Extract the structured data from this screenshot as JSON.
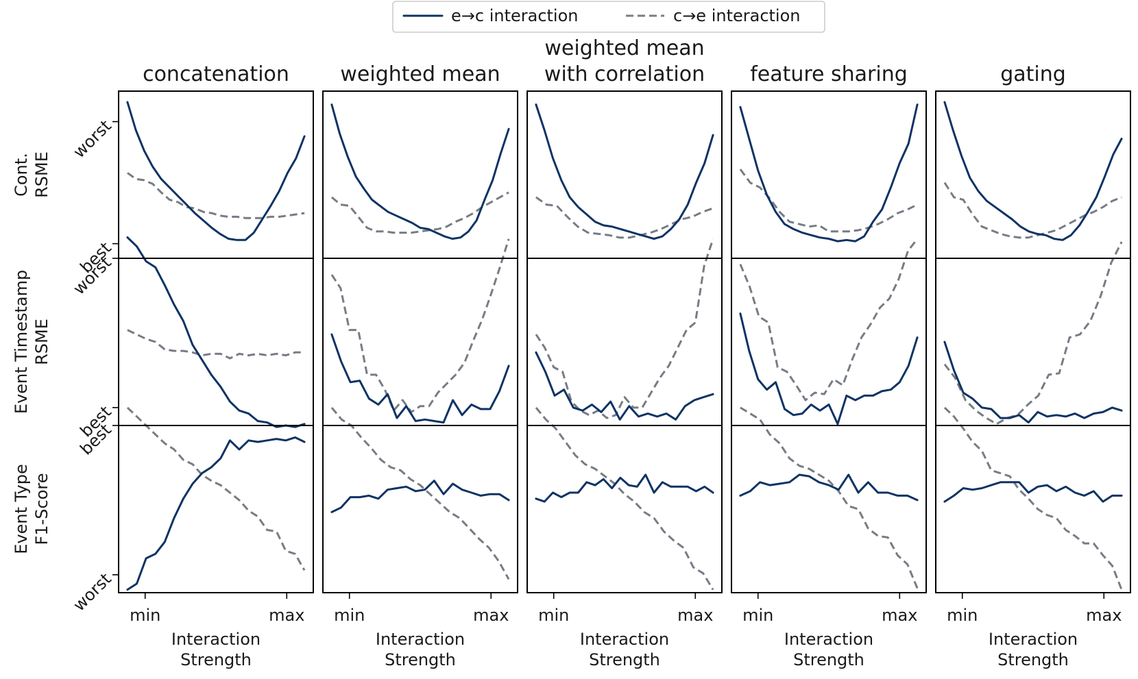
{
  "chart_data": {
    "type": "line",
    "legend": {
      "placement": "top-center",
      "entries": [
        {
          "label": "e→c interaction",
          "style": "solid",
          "color": "#0e3364"
        },
        {
          "label": "c→e interaction",
          "style": "dashed",
          "color": "#777c85"
        }
      ]
    },
    "colors": {
      "e2c": "#0e3364",
      "c2e": "#777c85"
    },
    "columns": [
      "concatenation",
      "weighted mean",
      "weighted mean\nwith correlation",
      "feature sharing",
      "gating"
    ],
    "rows": [
      {
        "label": "Cont.\nRSME",
        "tick_labels": [
          "worst",
          "best"
        ],
        "ylim": [
          -0.12,
          1.25
        ]
      },
      {
        "label": "Event Timestamp\nRSME",
        "tick_labels": [
          "worst",
          "best"
        ],
        "ylim": [
          -0.12,
          1.0
        ]
      },
      {
        "label": "Event Type\nF1-Score",
        "tick_labels": [
          "best",
          "worst"
        ],
        "ylim": [
          -0.12,
          1.0
        ]
      }
    ],
    "x_tick_labels": [
      "min",
      "max"
    ],
    "xlabel": "Interaction\nStrength",
    "xlim": [
      -0.05,
      1.05
    ],
    "x_ticks": [
      0.1,
      0.9
    ],
    "panels": [
      [
        {
          "e2c": [
            1.16,
            0.93,
            0.76,
            0.63,
            0.53,
            0.46,
            0.39,
            0.32,
            0.25,
            0.19,
            0.13,
            0.08,
            0.04,
            0.03,
            0.03,
            0.09,
            0.2,
            0.31,
            0.43,
            0.58,
            0.7,
            0.88
          ],
          "c2e": [
            0.58,
            0.53,
            0.52,
            0.49,
            0.42,
            0.36,
            0.34,
            0.3,
            0.29,
            0.26,
            0.25,
            0.23,
            0.22,
            0.22,
            0.21,
            0.21,
            0.21,
            0.22,
            0.22,
            0.23,
            0.24,
            0.25
          ]
        },
        {
          "e2c": [
            1.14,
            0.9,
            0.71,
            0.55,
            0.45,
            0.36,
            0.31,
            0.26,
            0.23,
            0.2,
            0.17,
            0.13,
            0.12,
            0.09,
            0.06,
            0.04,
            0.05,
            0.1,
            0.19,
            0.36,
            0.52,
            0.74,
            0.94
          ],
          "c2e": [
            0.38,
            0.32,
            0.31,
            0.22,
            0.13,
            0.1,
            0.1,
            0.09,
            0.09,
            0.09,
            0.1,
            0.11,
            0.12,
            0.14,
            0.18,
            0.21,
            0.25,
            0.3,
            0.34,
            0.38,
            0.42
          ]
        },
        {
          "e2c": [
            1.14,
            0.93,
            0.7,
            0.52,
            0.38,
            0.3,
            0.24,
            0.18,
            0.15,
            0.14,
            0.12,
            0.1,
            0.08,
            0.06,
            0.04,
            0.06,
            0.12,
            0.2,
            0.32,
            0.5,
            0.66,
            0.89
          ],
          "c2e": [
            0.38,
            0.32,
            0.31,
            0.22,
            0.14,
            0.09,
            0.08,
            0.07,
            0.05,
            0.05,
            0.07,
            0.09,
            0.12,
            0.16,
            0.2,
            0.22,
            0.26,
            0.29
          ]
        },
        {
          "e2c": [
            1.12,
            0.86,
            0.6,
            0.4,
            0.26,
            0.16,
            0.12,
            0.09,
            0.07,
            0.05,
            0.04,
            0.02,
            0.03,
            0.02,
            0.06,
            0.18,
            0.28,
            0.46,
            0.66,
            0.82,
            1.14
          ],
          "c2e": [
            0.61,
            0.5,
            0.46,
            0.37,
            0.26,
            0.18,
            0.16,
            0.14,
            0.15,
            0.1,
            0.1,
            0.1,
            0.11,
            0.13,
            0.16,
            0.2,
            0.25,
            0.28,
            0.32
          ]
        },
        {
          "e2c": [
            1.16,
            0.93,
            0.72,
            0.54,
            0.43,
            0.35,
            0.3,
            0.25,
            0.2,
            0.14,
            0.1,
            0.08,
            0.07,
            0.04,
            0.03,
            0.07,
            0.15,
            0.26,
            0.38,
            0.55,
            0.73,
            0.86
          ],
          "c2e": [
            0.5,
            0.38,
            0.36,
            0.24,
            0.14,
            0.11,
            0.08,
            0.06,
            0.05,
            0.05,
            0.07,
            0.09,
            0.11,
            0.15,
            0.19,
            0.23,
            0.26,
            0.3,
            0.35,
            0.38
          ]
        }
      ],
      [
        {
          "e2c": [
            1.14,
            1.08,
            0.98,
            0.94,
            0.82,
            0.69,
            0.58,
            0.42,
            0.32,
            0.22,
            0.14,
            0.04,
            -0.02,
            -0.04,
            -0.09,
            -0.1,
            -0.13,
            -0.12,
            -0.13,
            -0.11
          ],
          "c2e": [
            0.52,
            0.49,
            0.46,
            0.44,
            0.39,
            0.38,
            0.38,
            0.37,
            0.35,
            0.36,
            0.36,
            0.33,
            0.36,
            0.35,
            0.36,
            0.35,
            0.36,
            0.35,
            0.37,
            0.37
          ]
        },
        {
          "e2c": [
            0.49,
            0.31,
            0.17,
            0.18,
            0.06,
            0.02,
            0.09,
            -0.07,
            0.01,
            -0.09,
            -0.08,
            -0.09,
            -0.1,
            0.05,
            -0.05,
            0.02,
            -0.01,
            -0.01,
            0.11,
            0.28
          ],
          "c2e": [
            0.89,
            0.8,
            0.52,
            0.52,
            0.22,
            0.22,
            0.12,
            -0.02,
            0.05,
            -0.03,
            0.01,
            0.01,
            0.1,
            0.16,
            0.22,
            0.3,
            0.45,
            0.59,
            0.76,
            0.94,
            1.13
          ]
        },
        {
          "e2c": [
            0.37,
            0.24,
            0.08,
            0.12,
            0.0,
            -0.02,
            0.02,
            -0.03,
            0.04,
            -0.08,
            0.01,
            -0.06,
            -0.04,
            -0.06,
            -0.04,
            -0.08,
            0.01,
            0.05,
            0.07,
            0.09
          ],
          "c2e": [
            0.49,
            0.4,
            0.27,
            0.24,
            0.04,
            -0.02,
            -0.05,
            -0.02,
            -0.07,
            -0.05,
            0.07,
            0.0,
            0.0,
            0.1,
            0.2,
            0.28,
            0.4,
            0.52,
            0.57,
            0.95,
            1.13
          ]
        },
        {
          "e2c": [
            0.63,
            0.38,
            0.19,
            0.12,
            0.17,
            -0.01,
            -0.05,
            -0.04,
            0.02,
            -0.02,
            0.02,
            -0.11,
            0.08,
            0.05,
            0.08,
            0.08,
            0.11,
            0.12,
            0.17,
            0.28,
            0.47
          ],
          "c2e": [
            0.96,
            0.81,
            0.61,
            0.57,
            0.27,
            0.24,
            0.15,
            0.05,
            0.1,
            0.09,
            0.19,
            0.15,
            0.32,
            0.47,
            0.56,
            0.67,
            0.73,
            0.86,
            1.05,
            1.13
          ]
        },
        {
          "e2c": [
            0.44,
            0.25,
            0.1,
            0.06,
            0.0,
            -0.01,
            -0.07,
            -0.07,
            -0.05,
            -0.1,
            -0.03,
            -0.06,
            -0.05,
            -0.06,
            -0.04,
            -0.07,
            -0.04,
            -0.03,
            0.0,
            -0.02
          ],
          "c2e": [
            0.29,
            0.2,
            0.05,
            -0.02,
            -0.07,
            -0.11,
            -0.07,
            -0.05,
            0.02,
            0.08,
            0.22,
            0.23,
            0.47,
            0.49,
            0.58,
            0.75,
            0.97,
            1.11
          ]
        }
      ],
      [
        {
          "e2c": [
            -0.1,
            -0.06,
            0.11,
            0.14,
            0.22,
            0.38,
            0.51,
            0.61,
            0.68,
            0.72,
            0.78,
            0.9,
            0.84,
            0.9,
            0.89,
            0.9,
            0.91,
            0.9,
            0.92,
            0.89
          ],
          "c2e": [
            1.12,
            1.06,
            1.0,
            0.94,
            0.88,
            0.84,
            0.77,
            0.74,
            0.67,
            0.63,
            0.6,
            0.55,
            0.5,
            0.43,
            0.39,
            0.3,
            0.29,
            0.16,
            0.14,
            0.03
          ]
        },
        {
          "e2c": [
            0.42,
            0.45,
            0.52,
            0.52,
            0.53,
            0.51,
            0.57,
            0.58,
            0.59,
            0.56,
            0.57,
            0.63,
            0.54,
            0.61,
            0.57,
            0.55,
            0.53,
            0.54,
            0.54,
            0.5
          ],
          "c2e": [
            1.12,
            1.04,
            1.0,
            0.92,
            0.85,
            0.77,
            0.72,
            0.7,
            0.64,
            0.6,
            0.54,
            0.48,
            0.42,
            0.38,
            0.31,
            0.24,
            0.18,
            0.09,
            -0.03
          ]
        },
        {
          "e2c": [
            0.51,
            0.49,
            0.55,
            0.52,
            0.55,
            0.55,
            0.62,
            0.6,
            0.64,
            0.58,
            0.65,
            0.6,
            0.59,
            0.67,
            0.55,
            0.62,
            0.59,
            0.59,
            0.59,
            0.56,
            0.59,
            0.55
          ],
          "c2e": [
            1.12,
            1.04,
            0.98,
            0.89,
            0.8,
            0.74,
            0.71,
            0.66,
            0.61,
            0.54,
            0.49,
            0.42,
            0.38,
            0.29,
            0.23,
            0.18,
            0.05,
            0.01,
            -0.1
          ]
        },
        {
          "e2c": [
            0.53,
            0.56,
            0.62,
            0.6,
            0.61,
            0.62,
            0.67,
            0.66,
            0.62,
            0.6,
            0.57,
            0.67,
            0.55,
            0.62,
            0.55,
            0.55,
            0.53,
            0.53,
            0.5
          ],
          "c2e": [
            1.12,
            1.08,
            1.04,
            0.94,
            0.88,
            0.78,
            0.73,
            0.71,
            0.67,
            0.63,
            0.56,
            0.46,
            0.44,
            0.31,
            0.26,
            0.25,
            0.13,
            0.07,
            -0.09
          ]
        },
        {
          "e2c": [
            0.49,
            0.53,
            0.58,
            0.57,
            0.58,
            0.6,
            0.62,
            0.62,
            0.62,
            0.55,
            0.59,
            0.6,
            0.56,
            0.59,
            0.55,
            0.53,
            0.56,
            0.49,
            0.53,
            0.53
          ],
          "c2e": [
            1.12,
            1.06,
            0.98,
            0.89,
            0.83,
            0.7,
            0.68,
            0.66,
            0.57,
            0.51,
            0.44,
            0.4,
            0.38,
            0.3,
            0.26,
            0.21,
            0.21,
            0.13,
            0.06,
            -0.1
          ]
        }
      ]
    ]
  }
}
